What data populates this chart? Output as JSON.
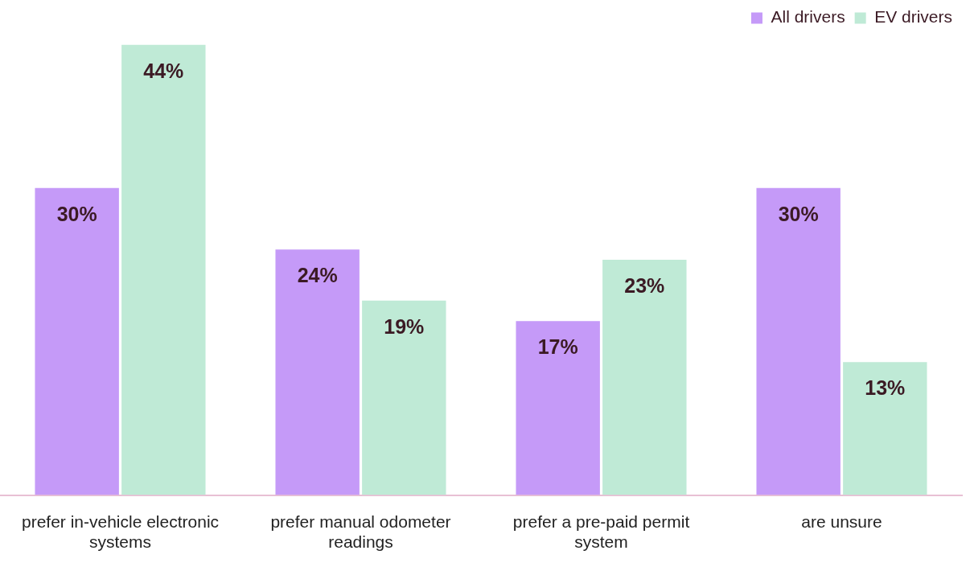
{
  "chart_data": {
    "type": "bar",
    "categories": [
      "prefer in-vehicle electronic systems",
      "prefer manual odometer readings",
      "prefer a pre-paid permit system",
      "are unsure"
    ],
    "series": [
      {
        "name": "All drivers",
        "color": "#c59af8",
        "values": [
          30,
          24,
          17,
          30
        ],
        "value_labels": [
          "30%",
          "24%",
          "17%",
          "30%"
        ]
      },
      {
        "name": "EV drivers",
        "color": "#bfead6",
        "values": [
          44,
          19,
          23,
          13
        ],
        "value_labels": [
          "44%",
          "19%",
          "23%",
          "13%"
        ]
      }
    ],
    "legend": "top right",
    "grid": false
  }
}
